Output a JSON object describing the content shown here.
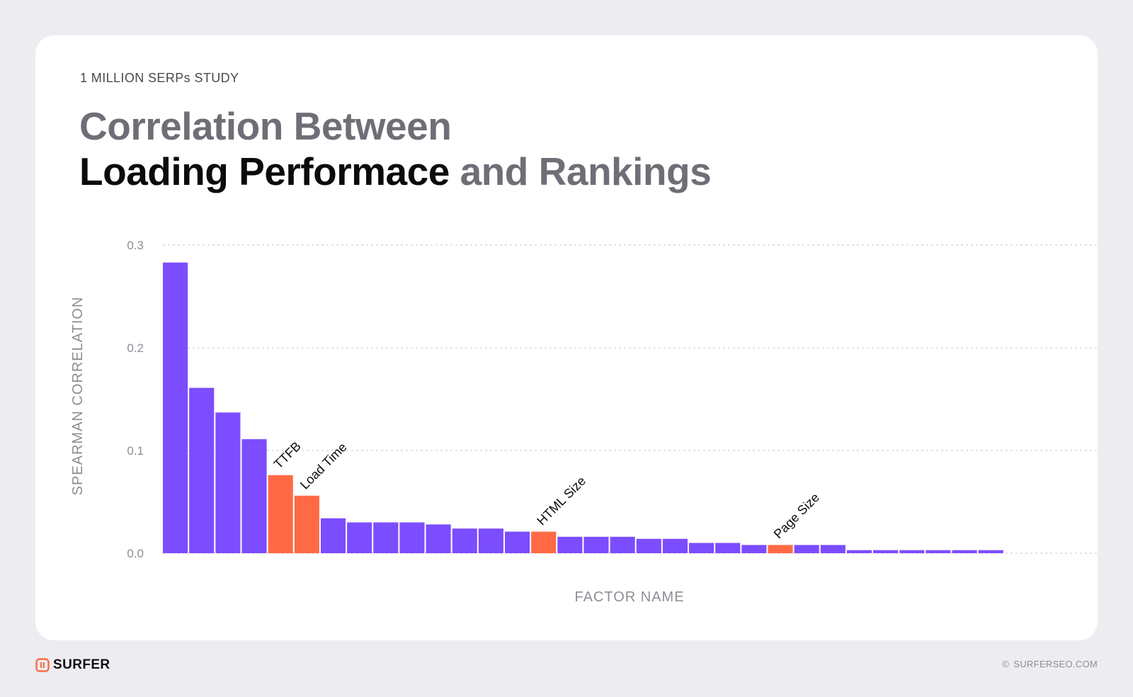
{
  "header": {
    "eyebrow": "1 MILLION SERPs STUDY",
    "title_line1": "Correlation Between",
    "title_line2_strong": "Loading Performace",
    "title_line2_rest": "and Rankings"
  },
  "colors": {
    "background": "#edecf1",
    "card": "#ffffff",
    "bar_default": "#7c4dff",
    "bar_highlight": "#ff6a45",
    "grid": "#c6c6cc",
    "axis_text": "#8e8d95"
  },
  "chart_data": {
    "type": "bar",
    "title": "Correlation Between Loading Performace and Rankings",
    "xlabel": "FACTOR NAME",
    "ylabel": "SPEARMAN CORRELATION",
    "ylim": [
      0,
      0.3
    ],
    "yticks": [
      "0.0",
      "0.1",
      "0.2",
      "0.3"
    ],
    "grid": true,
    "values": [
      0.283,
      0.161,
      0.137,
      0.111,
      0.076,
      0.056,
      0.034,
      0.03,
      0.03,
      0.03,
      0.028,
      0.024,
      0.024,
      0.021,
      0.021,
      0.016,
      0.016,
      0.016,
      0.014,
      0.014,
      0.01,
      0.01,
      0.008,
      0.008,
      0.008,
      0.008,
      0.003,
      0.003,
      0.003,
      0.003,
      0.003,
      0.003
    ],
    "labels": [
      "",
      "",
      "",
      "",
      "TTFB",
      "Load Time",
      "",
      "",
      "",
      "",
      "",
      "",
      "",
      "",
      "HTML Size",
      "",
      "",
      "",
      "",
      "",
      "",
      "",
      "",
      "Page Size",
      "",
      "",
      "",
      "",
      "",
      "",
      "",
      ""
    ],
    "highlight": [
      4,
      5,
      14,
      23
    ]
  },
  "footer": {
    "brand": "SURFER",
    "copyright_icon": "copyright-icon",
    "copyright": "SURFERSEO.COM"
  }
}
